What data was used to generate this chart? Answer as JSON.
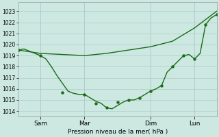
{
  "bg_color": "#cce8e0",
  "grid_color": "#aacccc",
  "line_color": "#1a6b1a",
  "ylabel": "Pression niveau de la mer( hPa )",
  "ylim": [
    1013.5,
    1023.8
  ],
  "yticks": [
    1014,
    1015,
    1016,
    1017,
    1018,
    1019,
    1020,
    1021,
    1022,
    1023
  ],
  "xtick_labels": [
    "Sam",
    "Mar",
    "Dim",
    "Lun"
  ],
  "xtick_positions": [
    24,
    72,
    144,
    192
  ],
  "xlim": [
    0,
    216
  ],
  "vline_positions": [
    24,
    72,
    144,
    192
  ],
  "smooth_line_x": [
    0,
    24,
    48,
    72,
    96,
    120,
    144,
    168,
    192,
    216
  ],
  "smooth_line_y": [
    1019.5,
    1019.2,
    1019.1,
    1019.0,
    1019.2,
    1019.5,
    1019.8,
    1020.3,
    1021.5,
    1023.0
  ],
  "detail_line_x": [
    0,
    6,
    12,
    18,
    24,
    30,
    36,
    42,
    48,
    54,
    60,
    66,
    72,
    78,
    84,
    90,
    96,
    102,
    108,
    114,
    120,
    126,
    132,
    138,
    144,
    150,
    156,
    162,
    168,
    174,
    180,
    186,
    192,
    198,
    204,
    210,
    216
  ],
  "detail_line_y": [
    1019.5,
    1019.6,
    1019.4,
    1019.2,
    1019.0,
    1018.7,
    1018.0,
    1017.2,
    1016.5,
    1015.8,
    1015.6,
    1015.5,
    1015.5,
    1015.2,
    1014.9,
    1014.7,
    1014.3,
    1014.2,
    1014.5,
    1014.8,
    1015.0,
    1015.0,
    1015.2,
    1015.5,
    1015.8,
    1016.0,
    1016.3,
    1017.5,
    1018.0,
    1018.5,
    1019.0,
    1019.1,
    1018.7,
    1019.2,
    1021.8,
    1022.4,
    1022.7
  ],
  "dot_x": [
    0,
    24,
    48,
    72,
    84,
    96,
    108,
    120,
    132,
    144,
    156,
    168,
    180,
    192,
    204,
    216
  ],
  "dot_y": [
    1019.5,
    1019.0,
    1015.7,
    1015.5,
    1014.7,
    1014.3,
    1014.8,
    1015.0,
    1015.2,
    1015.8,
    1016.3,
    1018.0,
    1019.0,
    1018.7,
    1021.8,
    1022.7
  ]
}
